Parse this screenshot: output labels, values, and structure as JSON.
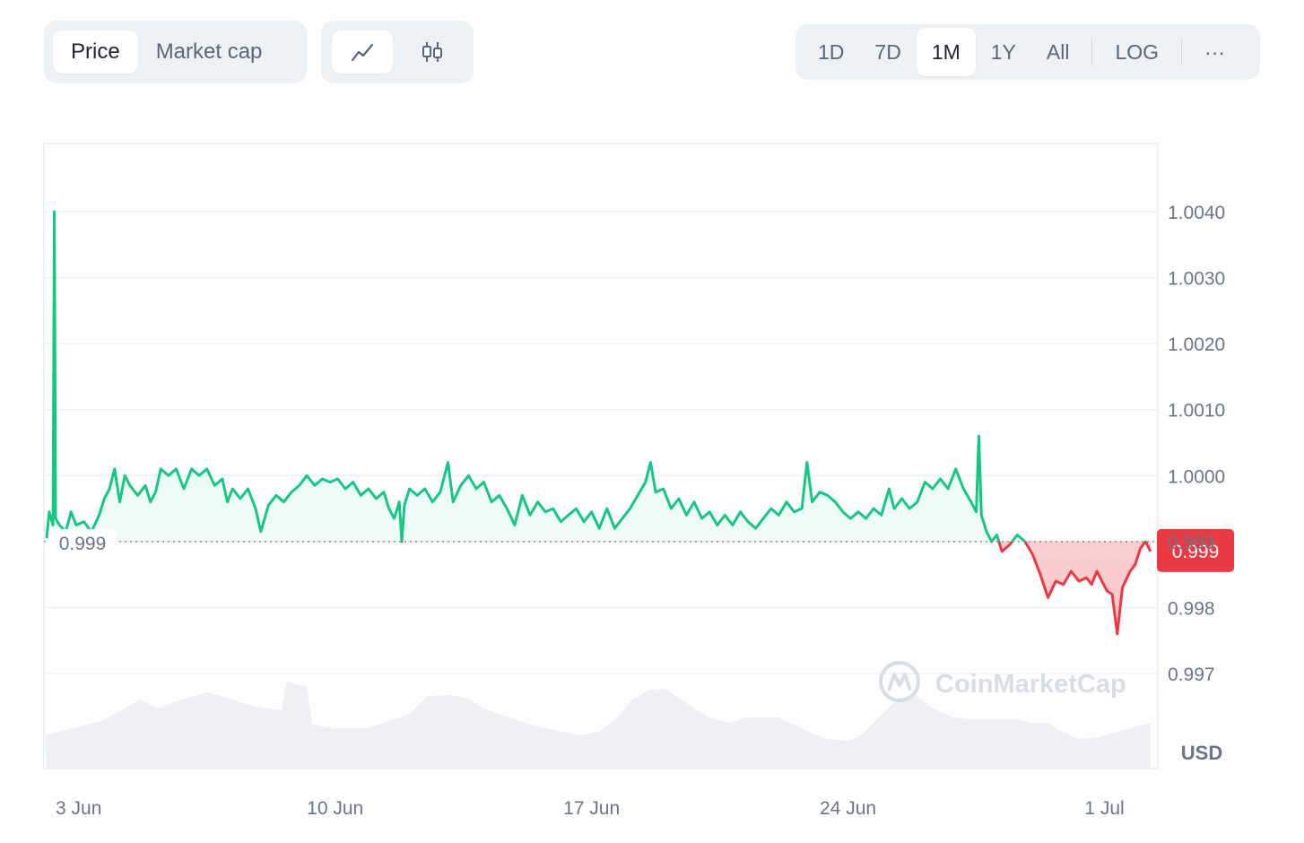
{
  "toolbar": {
    "type_tabs": [
      "Price",
      "Market cap"
    ],
    "active_type": "Price",
    "chart_modes": [
      "line-chart-icon",
      "candlestick-icon"
    ],
    "active_mode": "line-chart-icon",
    "ranges": [
      "1D",
      "7D",
      "1M",
      "1Y",
      "All"
    ],
    "active_range": "1M",
    "log_label": "LOG",
    "more_label": "···"
  },
  "colors": {
    "up": "#16c784",
    "down": "#ea3943",
    "grid": "#eff2f5",
    "volume": "#eef0f3"
  },
  "watermark": "CoinMarketCap",
  "chart_data": {
    "type": "line",
    "y_unit": "USD",
    "ylim": [
      0.9963,
      1.005
    ],
    "yticks": [
      {
        "v": 1.004,
        "label": "1.0040"
      },
      {
        "v": 1.003,
        "label": "1.0030"
      },
      {
        "v": 1.002,
        "label": "1.0020"
      },
      {
        "v": 1.001,
        "label": "1.0010"
      },
      {
        "v": 1.0,
        "label": "1.0000"
      },
      {
        "v": 0.999,
        "label": "0.999"
      },
      {
        "v": 0.998,
        "label": "0.998"
      },
      {
        "v": 0.997,
        "label": "0.997"
      }
    ],
    "xlim": [
      1.75,
      44.8
    ],
    "xticks": [
      {
        "day": 3,
        "label": "3 Jun"
      },
      {
        "day": 13,
        "label": "10 Jun"
      },
      {
        "day": 23,
        "label": "17 Jun"
      },
      {
        "day": 33,
        "label": "24 Jun"
      },
      {
        "day": 43,
        "label": "1 Jul"
      }
    ],
    "baseline": 0.999,
    "baseline_label": "0.999",
    "current_label": "0.999",
    "series": [
      {
        "values": [
          [
            1.75,
            0.99905
          ],
          [
            1.85,
            0.99945
          ],
          [
            2.0,
            0.99925
          ],
          [
            2.05,
            1.004
          ],
          [
            2.1,
            0.99935
          ],
          [
            2.25,
            0.99925
          ],
          [
            2.5,
            0.99915
          ],
          [
            2.7,
            0.99945
          ],
          [
            2.9,
            0.99925
          ],
          [
            3.2,
            0.9993
          ],
          [
            3.5,
            0.99915
          ],
          [
            3.8,
            0.9994
          ],
          [
            4.0,
            0.99965
          ],
          [
            4.2,
            0.9998
          ],
          [
            4.4,
            1.0001
          ],
          [
            4.6,
            0.9996
          ],
          [
            4.8,
            1.0
          ],
          [
            5.0,
            0.99985
          ],
          [
            5.3,
            0.9997
          ],
          [
            5.6,
            0.99985
          ],
          [
            5.8,
            0.9996
          ],
          [
            6.0,
            0.99975
          ],
          [
            6.2,
            1.0001
          ],
          [
            6.5,
            1.0
          ],
          [
            6.8,
            1.0001
          ],
          [
            7.1,
            0.9998
          ],
          [
            7.4,
            1.0001
          ],
          [
            7.7,
            1.0
          ],
          [
            8.0,
            1.0001
          ],
          [
            8.3,
            0.99985
          ],
          [
            8.6,
            0.99995
          ],
          [
            8.8,
            0.9996
          ],
          [
            9.0,
            0.9998
          ],
          [
            9.3,
            0.99965
          ],
          [
            9.6,
            0.9998
          ],
          [
            9.9,
            0.9995
          ],
          [
            10.1,
            0.99915
          ],
          [
            10.4,
            0.99955
          ],
          [
            10.7,
            0.9997
          ],
          [
            11.0,
            0.9996
          ],
          [
            11.3,
            0.99975
          ],
          [
            11.6,
            0.99985
          ],
          [
            11.9,
            1.0
          ],
          [
            12.2,
            0.99985
          ],
          [
            12.5,
            0.99995
          ],
          [
            12.8,
            0.9999
          ],
          [
            13.1,
            0.99995
          ],
          [
            13.4,
            0.9998
          ],
          [
            13.7,
            0.9999
          ],
          [
            14.0,
            0.9997
          ],
          [
            14.3,
            0.9998
          ],
          [
            14.6,
            0.99965
          ],
          [
            14.9,
            0.99975
          ],
          [
            15.1,
            0.9995
          ],
          [
            15.3,
            0.99935
          ],
          [
            15.5,
            0.9996
          ],
          [
            15.6,
            0.999
          ],
          [
            15.7,
            0.99955
          ],
          [
            15.9,
            0.9998
          ],
          [
            16.2,
            0.9997
          ],
          [
            16.5,
            0.9998
          ],
          [
            16.8,
            0.9996
          ],
          [
            17.1,
            0.99975
          ],
          [
            17.4,
            1.0002
          ],
          [
            17.6,
            0.9996
          ],
          [
            17.9,
            0.99985
          ],
          [
            18.2,
            1.0
          ],
          [
            18.5,
            0.9998
          ],
          [
            18.8,
            0.9999
          ],
          [
            19.1,
            0.9996
          ],
          [
            19.4,
            0.9997
          ],
          [
            19.7,
            0.9995
          ],
          [
            20.0,
            0.99925
          ],
          [
            20.3,
            0.9997
          ],
          [
            20.6,
            0.9994
          ],
          [
            20.9,
            0.9996
          ],
          [
            21.2,
            0.99945
          ],
          [
            21.5,
            0.9995
          ],
          [
            21.8,
            0.9993
          ],
          [
            22.1,
            0.9994
          ],
          [
            22.4,
            0.9995
          ],
          [
            22.7,
            0.9993
          ],
          [
            23.0,
            0.99945
          ],
          [
            23.3,
            0.9992
          ],
          [
            23.6,
            0.9995
          ],
          [
            23.9,
            0.9992
          ],
          [
            24.2,
            0.99935
          ],
          [
            24.5,
            0.9995
          ],
          [
            24.8,
            0.9997
          ],
          [
            25.1,
            0.9999
          ],
          [
            25.3,
            1.0002
          ],
          [
            25.5,
            0.99975
          ],
          [
            25.8,
            0.9998
          ],
          [
            26.1,
            0.9995
          ],
          [
            26.4,
            0.99965
          ],
          [
            26.7,
            0.9994
          ],
          [
            27.0,
            0.9996
          ],
          [
            27.3,
            0.99935
          ],
          [
            27.6,
            0.99945
          ],
          [
            27.9,
            0.99925
          ],
          [
            28.2,
            0.9994
          ],
          [
            28.5,
            0.99925
          ],
          [
            28.8,
            0.99945
          ],
          [
            29.1,
            0.9993
          ],
          [
            29.4,
            0.9992
          ],
          [
            29.7,
            0.99935
          ],
          [
            30.0,
            0.9995
          ],
          [
            30.3,
            0.9994
          ],
          [
            30.6,
            0.9996
          ],
          [
            30.9,
            0.99945
          ],
          [
            31.2,
            0.9995
          ],
          [
            31.4,
            1.0002
          ],
          [
            31.6,
            0.9996
          ],
          [
            31.9,
            0.99975
          ],
          [
            32.2,
            0.9997
          ],
          [
            32.5,
            0.9996
          ],
          [
            32.8,
            0.99945
          ],
          [
            33.1,
            0.99935
          ],
          [
            33.4,
            0.99945
          ],
          [
            33.7,
            0.99935
          ],
          [
            34.0,
            0.9995
          ],
          [
            34.3,
            0.9994
          ],
          [
            34.6,
            0.9998
          ],
          [
            34.8,
            0.9995
          ],
          [
            35.1,
            0.99965
          ],
          [
            35.4,
            0.9995
          ],
          [
            35.7,
            0.9996
          ],
          [
            36.0,
            0.9999
          ],
          [
            36.3,
            0.9998
          ],
          [
            36.6,
            0.99995
          ],
          [
            36.9,
            0.9998
          ],
          [
            37.2,
            1.0001
          ],
          [
            37.5,
            0.9998
          ],
          [
            37.8,
            0.9996
          ],
          [
            38.0,
            0.99945
          ],
          [
            38.1,
            1.0006
          ],
          [
            38.2,
            0.9994
          ],
          [
            38.4,
            0.99915
          ],
          [
            38.6,
            0.999
          ],
          [
            38.8,
            0.9991
          ],
          [
            39.0,
            0.99885
          ],
          [
            39.3,
            0.99895
          ],
          [
            39.6,
            0.9991
          ],
          [
            39.9,
            0.999
          ],
          [
            40.2,
            0.9988
          ],
          [
            40.5,
            0.9985
          ],
          [
            40.8,
            0.99815
          ],
          [
            41.1,
            0.9984
          ],
          [
            41.4,
            0.99835
          ],
          [
            41.7,
            0.99855
          ],
          [
            42.0,
            0.9984
          ],
          [
            42.3,
            0.99845
          ],
          [
            42.5,
            0.99835
          ],
          [
            42.7,
            0.99855
          ],
          [
            42.9,
            0.9984
          ],
          [
            43.1,
            0.99825
          ],
          [
            43.3,
            0.9982
          ],
          [
            43.5,
            0.9976
          ],
          [
            43.7,
            0.9983
          ],
          [
            44.0,
            0.99855
          ],
          [
            44.2,
            0.99865
          ],
          [
            44.4,
            0.9989
          ],
          [
            44.6,
            0.999
          ],
          [
            44.8,
            0.99885
          ]
        ]
      }
    ]
  }
}
